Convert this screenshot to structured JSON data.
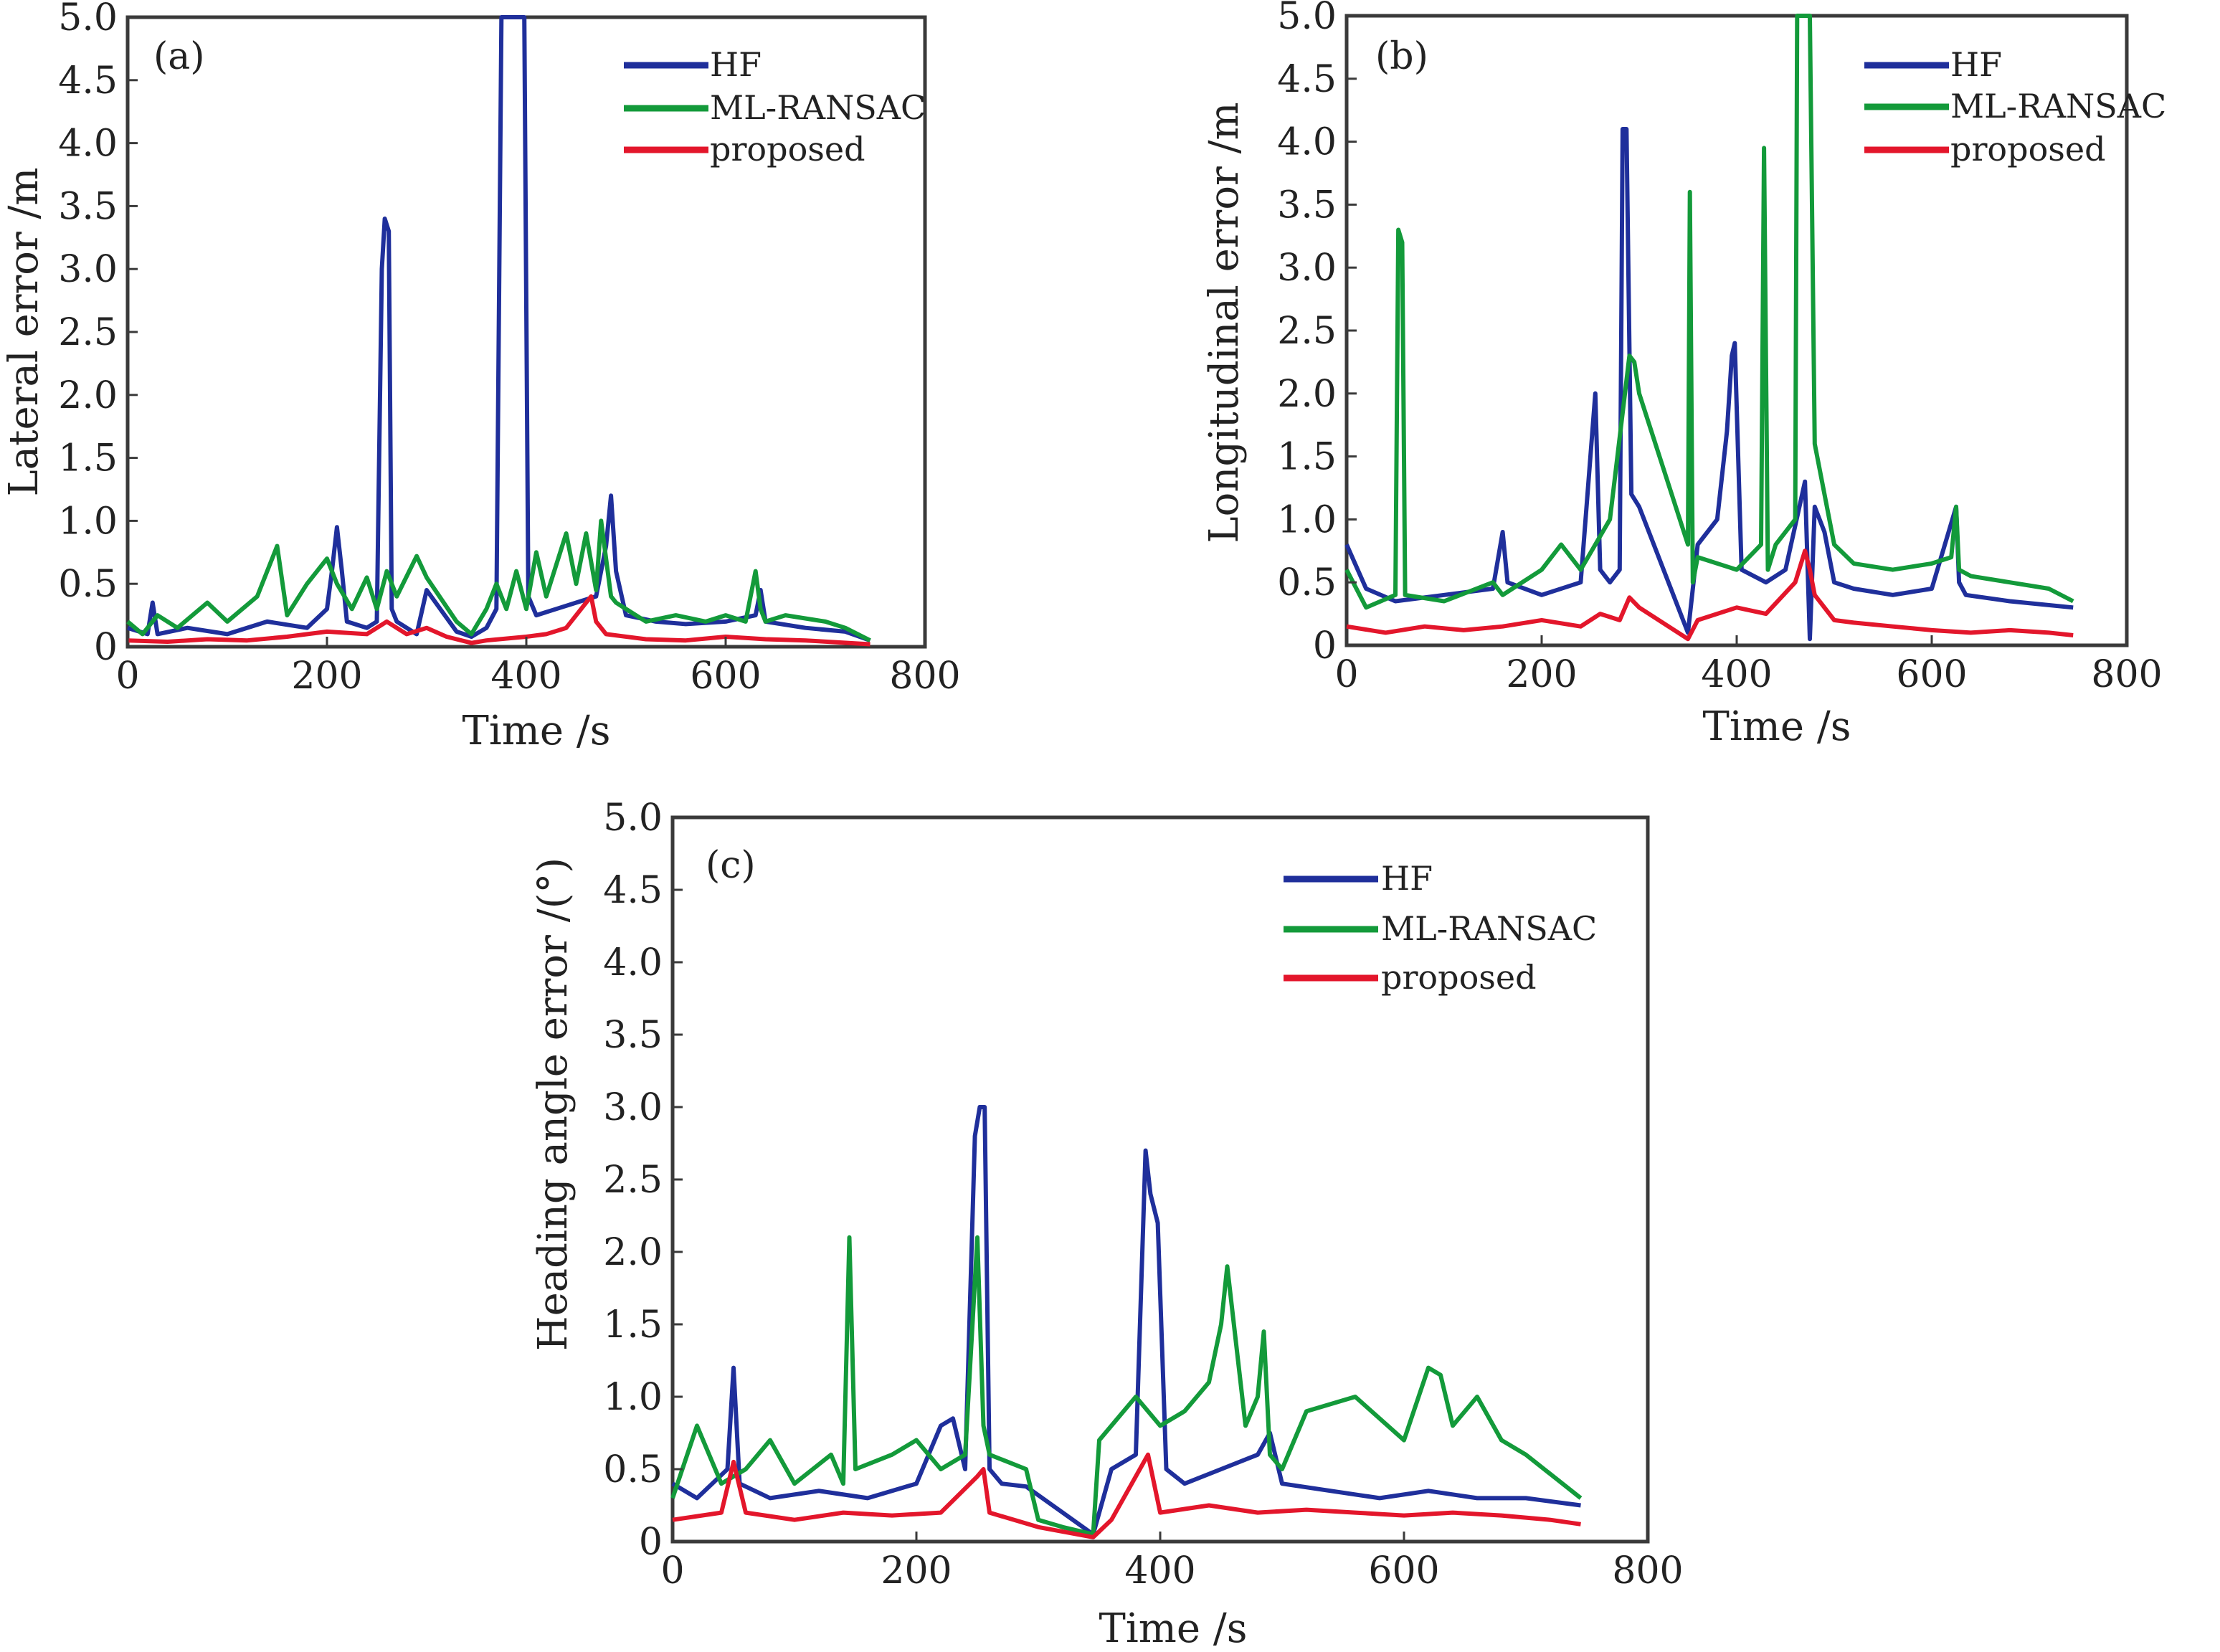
{
  "figure": {
    "colors": {
      "HF": "#1f2f9b",
      "ML-RANSAC": "#139a3a",
      "proposed": "#e3162b",
      "axis": "#3a3a3a",
      "text": "#222222"
    }
  },
  "chart_data": [
    {
      "type": "line",
      "panel": "(a)",
      "xlabel": "Time /s",
      "ylabel": "Lateral error /m",
      "xlim": [
        0,
        800
      ],
      "ylim": [
        0,
        5.0
      ],
      "xticks": [
        "0",
        "200",
        "400",
        "600",
        "800"
      ],
      "yticks": [
        "0",
        "0.5",
        "1.0",
        "1.5",
        "2.0",
        "2.5",
        "3.0",
        "3.5",
        "4.0",
        "4.5",
        "5.0"
      ],
      "legend_position": "top-right",
      "series": [
        {
          "name": "HF",
          "x": [
            0,
            20,
            25,
            30,
            60,
            100,
            140,
            180,
            200,
            205,
            210,
            215,
            220,
            240,
            250,
            255,
            258,
            262,
            265,
            270,
            280,
            290,
            300,
            330,
            345,
            360,
            370,
            375,
            380,
            385,
            390,
            395,
            398,
            402,
            410,
            430,
            450,
            470,
            480,
            485,
            490,
            500,
            530,
            560,
            600,
            630,
            635,
            640,
            680,
            720,
            745
          ],
          "values": [
            0.15,
            0.1,
            0.35,
            0.1,
            0.15,
            0.1,
            0.2,
            0.15,
            0.3,
            0.6,
            0.95,
            0.6,
            0.2,
            0.15,
            0.2,
            3.0,
            3.4,
            3.3,
            0.3,
            0.2,
            0.15,
            0.1,
            0.45,
            0.12,
            0.08,
            0.15,
            0.3,
            5.0,
            5.0,
            5.0,
            5.0,
            5.0,
            5.0,
            0.4,
            0.25,
            0.3,
            0.35,
            0.4,
            0.8,
            1.2,
            0.6,
            0.25,
            0.2,
            0.18,
            0.2,
            0.25,
            0.45,
            0.2,
            0.15,
            0.12,
            0.05
          ]
        },
        {
          "name": "ML-RANSAC",
          "x": [
            0,
            15,
            30,
            50,
            80,
            100,
            130,
            150,
            160,
            180,
            200,
            210,
            225,
            240,
            250,
            260,
            270,
            290,
            300,
            330,
            345,
            360,
            370,
            380,
            390,
            400,
            410,
            420,
            440,
            450,
            460,
            470,
            475,
            480,
            485,
            490,
            500,
            520,
            550,
            580,
            600,
            620,
            630,
            635,
            640,
            660,
            700,
            720,
            745
          ],
          "values": [
            0.2,
            0.1,
            0.25,
            0.15,
            0.35,
            0.2,
            0.4,
            0.8,
            0.25,
            0.5,
            0.7,
            0.5,
            0.3,
            0.55,
            0.3,
            0.6,
            0.4,
            0.72,
            0.55,
            0.2,
            0.1,
            0.3,
            0.5,
            0.3,
            0.6,
            0.3,
            0.75,
            0.4,
            0.9,
            0.5,
            0.9,
            0.45,
            1.0,
            0.7,
            0.4,
            0.35,
            0.3,
            0.2,
            0.25,
            0.2,
            0.25,
            0.2,
            0.6,
            0.3,
            0.2,
            0.25,
            0.2,
            0.15,
            0.05
          ]
        },
        {
          "name": "proposed",
          "x": [
            0,
            40,
            80,
            120,
            160,
            200,
            240,
            260,
            280,
            300,
            320,
            345,
            360,
            400,
            420,
            440,
            460,
            465,
            470,
            480,
            520,
            560,
            600,
            640,
            680,
            745
          ],
          "values": [
            0.05,
            0.04,
            0.06,
            0.05,
            0.08,
            0.12,
            0.1,
            0.2,
            0.1,
            0.15,
            0.08,
            0.03,
            0.05,
            0.08,
            0.1,
            0.15,
            0.35,
            0.4,
            0.2,
            0.1,
            0.06,
            0.05,
            0.08,
            0.06,
            0.05,
            0.02
          ]
        }
      ]
    },
    {
      "type": "line",
      "panel": "(b)",
      "xlabel": "Time /s",
      "ylabel": "Longitudinal error /m",
      "xlim": [
        0,
        800
      ],
      "ylim": [
        0,
        5.0
      ],
      "xticks": [
        "0",
        "200",
        "400",
        "600",
        "800"
      ],
      "yticks": [
        "0",
        "0.5",
        "1.0",
        "1.5",
        "2.0",
        "2.5",
        "3.0",
        "3.5",
        "4.0",
        "4.5",
        "5.0"
      ],
      "legend_position": "top-right",
      "series": [
        {
          "name": "HF",
          "x": [
            0,
            20,
            50,
            100,
            150,
            160,
            165,
            200,
            240,
            250,
            255,
            260,
            270,
            280,
            283,
            287,
            292,
            300,
            350,
            360,
            380,
            390,
            395,
            398,
            405,
            430,
            450,
            470,
            475,
            480,
            490,
            500,
            520,
            560,
            600,
            625,
            628,
            635,
            680,
            745
          ],
          "values": [
            0.8,
            0.45,
            0.35,
            0.4,
            0.45,
            0.9,
            0.5,
            0.4,
            0.5,
            1.5,
            2.0,
            0.6,
            0.5,
            0.6,
            4.1,
            4.1,
            1.2,
            1.1,
            0.1,
            0.8,
            1.0,
            1.7,
            2.3,
            2.4,
            0.6,
            0.5,
            0.6,
            1.3,
            0.05,
            1.1,
            0.9,
            0.5,
            0.45,
            0.4,
            0.45,
            1.1,
            0.5,
            0.4,
            0.35,
            0.3
          ]
        },
        {
          "name": "ML-RANSAC",
          "x": [
            0,
            20,
            50,
            53,
            57,
            60,
            100,
            150,
            160,
            200,
            220,
            240,
            270,
            290,
            295,
            300,
            350,
            352,
            355,
            360,
            400,
            425,
            428,
            432,
            440,
            460,
            462,
            465,
            475,
            480,
            500,
            520,
            560,
            600,
            620,
            625,
            628,
            640,
            680,
            720,
            745
          ],
          "values": [
            0.6,
            0.3,
            0.4,
            3.3,
            3.2,
            0.4,
            0.35,
            0.5,
            0.4,
            0.6,
            0.8,
            0.6,
            1.0,
            2.3,
            2.25,
            2.0,
            0.8,
            3.6,
            0.5,
            0.7,
            0.6,
            0.8,
            3.95,
            0.6,
            0.8,
            1.0,
            5.0,
            5.0,
            5.0,
            1.6,
            0.8,
            0.65,
            0.6,
            0.65,
            0.7,
            1.1,
            0.6,
            0.55,
            0.5,
            0.45,
            0.35
          ]
        },
        {
          "name": "proposed",
          "x": [
            0,
            40,
            80,
            120,
            160,
            200,
            240,
            260,
            280,
            290,
            300,
            350,
            360,
            400,
            430,
            460,
            470,
            475,
            480,
            500,
            520,
            560,
            600,
            640,
            680,
            720,
            745
          ],
          "values": [
            0.15,
            0.1,
            0.15,
            0.12,
            0.15,
            0.2,
            0.15,
            0.25,
            0.2,
            0.38,
            0.3,
            0.05,
            0.2,
            0.3,
            0.25,
            0.5,
            0.75,
            0.6,
            0.4,
            0.2,
            0.18,
            0.15,
            0.12,
            0.1,
            0.12,
            0.1,
            0.08
          ]
        }
      ]
    },
    {
      "type": "line",
      "panel": "(c)",
      "xlabel": "Time /s",
      "ylabel": "Heading angle error /(°)",
      "xlim": [
        0,
        800
      ],
      "ylim": [
        0,
        5.0
      ],
      "xticks": [
        "0",
        "200",
        "400",
        "600",
        "800"
      ],
      "yticks": [
        "0",
        "0.5",
        "1.0",
        "1.5",
        "2.0",
        "2.5",
        "3.0",
        "3.5",
        "4.0",
        "4.5",
        "5.0"
      ],
      "legend_position": "top-right",
      "series": [
        {
          "name": "HF",
          "x": [
            0,
            20,
            45,
            50,
            55,
            80,
            120,
            160,
            200,
            220,
            230,
            240,
            248,
            252,
            256,
            260,
            270,
            290,
            320,
            345,
            360,
            380,
            388,
            392,
            398,
            405,
            420,
            450,
            480,
            490,
            500,
            540,
            580,
            620,
            660,
            700,
            745
          ],
          "values": [
            0.4,
            0.3,
            0.5,
            1.2,
            0.4,
            0.3,
            0.35,
            0.3,
            0.4,
            0.8,
            0.85,
            0.5,
            2.8,
            3.0,
            3.0,
            0.5,
            0.4,
            0.38,
            0.2,
            0.05,
            0.5,
            0.6,
            2.7,
            2.4,
            2.2,
            0.5,
            0.4,
            0.5,
            0.6,
            0.75,
            0.4,
            0.35,
            0.3,
            0.35,
            0.3,
            0.3,
            0.25
          ]
        },
        {
          "name": "ML-RANSAC",
          "x": [
            0,
            20,
            40,
            60,
            80,
            100,
            130,
            140,
            145,
            150,
            180,
            200,
            220,
            240,
            250,
            255,
            260,
            290,
            300,
            320,
            345,
            350,
            370,
            380,
            400,
            420,
            440,
            450,
            455,
            470,
            480,
            485,
            490,
            500,
            520,
            560,
            600,
            620,
            630,
            640,
            660,
            680,
            700,
            745
          ],
          "values": [
            0.3,
            0.8,
            0.4,
            0.5,
            0.7,
            0.4,
            0.6,
            0.4,
            2.1,
            0.5,
            0.6,
            0.7,
            0.5,
            0.6,
            2.1,
            0.8,
            0.6,
            0.5,
            0.15,
            0.1,
            0.05,
            0.7,
            0.9,
            1.0,
            0.8,
            0.9,
            1.1,
            1.5,
            1.9,
            0.8,
            1.0,
            1.45,
            0.6,
            0.5,
            0.9,
            1.0,
            0.7,
            1.2,
            1.15,
            0.8,
            1.0,
            0.7,
            0.6,
            0.3
          ]
        },
        {
          "name": "proposed",
          "x": [
            0,
            40,
            50,
            60,
            100,
            140,
            180,
            220,
            250,
            255,
            260,
            300,
            345,
            360,
            390,
            400,
            440,
            480,
            520,
            560,
            600,
            640,
            680,
            720,
            745
          ],
          "values": [
            0.15,
            0.2,
            0.55,
            0.2,
            0.15,
            0.2,
            0.18,
            0.2,
            0.45,
            0.5,
            0.2,
            0.1,
            0.03,
            0.15,
            0.6,
            0.2,
            0.25,
            0.2,
            0.22,
            0.2,
            0.18,
            0.2,
            0.18,
            0.15,
            0.12
          ]
        }
      ]
    }
  ]
}
